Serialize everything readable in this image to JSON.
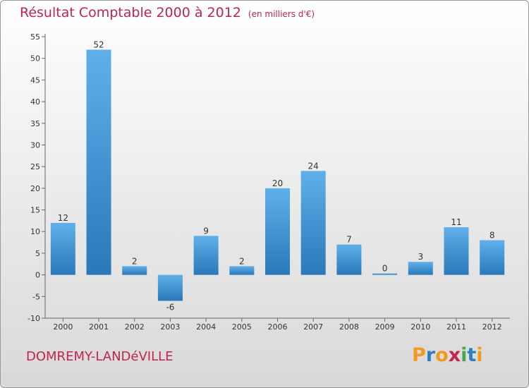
{
  "title": "Résultat Comptable 2000 à 2012",
  "unit": "(en milliers d'€)",
  "commune": "DOMREMY-LANDéVILLE",
  "logo": {
    "letters": [
      "P",
      "r",
      "o",
      "x",
      "i",
      "t",
      "i"
    ],
    "colors": [
      "#f29a1f",
      "#2b7fc2",
      "#f29a1f",
      "#c0244f",
      "#4aa64a",
      "#2b7fc2",
      "#f29a1f"
    ]
  },
  "colors": {
    "bar_top": "#5fb0ea",
    "bar_bottom": "#2a78b8",
    "accent": "#c0244f"
  },
  "chart_data": {
    "type": "bar",
    "categories": [
      "2000",
      "2001",
      "2002",
      "2003",
      "2004",
      "2005",
      "2006",
      "2007",
      "2008",
      "2009",
      "2010",
      "2011",
      "2012"
    ],
    "values": [
      12,
      52,
      2,
      -6,
      9,
      2,
      20,
      24,
      7,
      0,
      3,
      11,
      8
    ],
    "ylim": [
      -10,
      55
    ],
    "yticks": [
      -10,
      -5,
      0,
      5,
      10,
      15,
      20,
      25,
      30,
      35,
      40,
      45,
      50,
      55
    ],
    "grid": false
  }
}
